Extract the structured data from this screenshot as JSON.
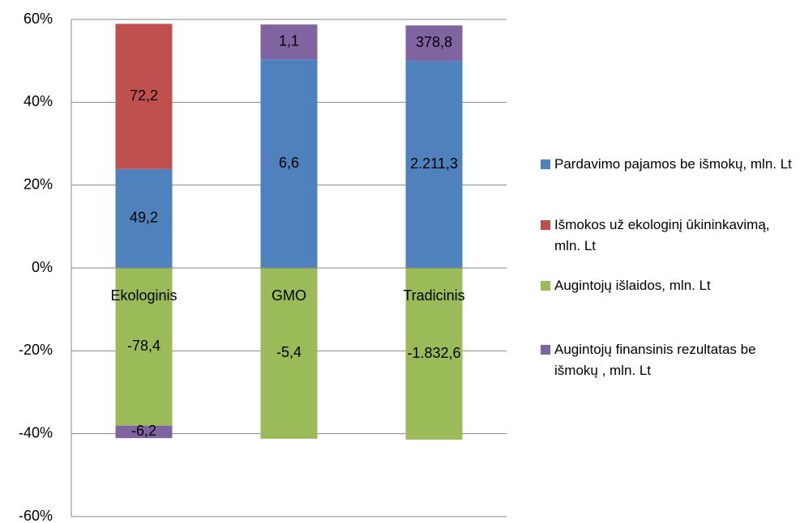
{
  "chart_data": {
    "type": "bar",
    "stacking": "percent",
    "categories": [
      "Ekologinis",
      "GMO",
      "Tradicinis"
    ],
    "series": [
      {
        "name": "Augintojų finansinis rezultatas be išmokų , mln. Lt",
        "color": "#8064a2",
        "values": [
          -6.2,
          1.1,
          378.8
        ],
        "value_labels": [
          "-6,2",
          "1,1",
          "378,8"
        ]
      },
      {
        "name": "Augintojų išlaidos, mln. Lt",
        "color": "#9bbb59",
        "values": [
          -78.4,
          -5.4,
          -1832.6
        ],
        "value_labels": [
          "-78,4",
          "-5,4",
          "-1.832,6"
        ]
      },
      {
        "name": "Išmokos už ekologinį ūkininkavimą, mln. Lt",
        "color": "#c0504d",
        "values": [
          72.2,
          null,
          null
        ],
        "value_labels": [
          "72,2",
          null,
          null
        ]
      },
      {
        "name": "Pardavimo pajamos be išmokų, mln. Lt",
        "color": "#4f81bd",
        "values": [
          49.2,
          6.6,
          2211.3
        ],
        "value_labels": [
          "49,2",
          "6,6",
          "2.211,3"
        ]
      }
    ],
    "ylim": [
      -60,
      60
    ],
    "yticks": [
      {
        "value": -60,
        "label": "-60%"
      },
      {
        "value": -40,
        "label": "-40%"
      },
      {
        "value": -20,
        "label": "-20%"
      },
      {
        "value": 0,
        "label": "0%"
      },
      {
        "value": 20,
        "label": "20%"
      },
      {
        "value": 40,
        "label": "40%"
      },
      {
        "value": 60,
        "label": "60%"
      }
    ],
    "grid": true,
    "legend": "right"
  }
}
